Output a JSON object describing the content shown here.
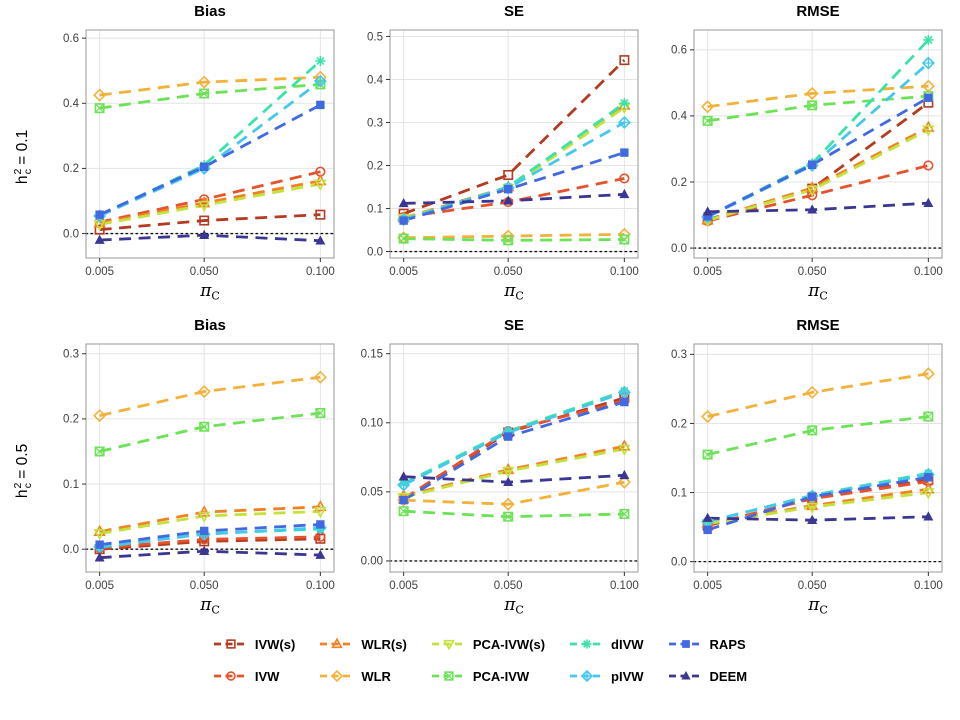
{
  "x_axis": {
    "label": "π",
    "label_subscript": "C",
    "values": [
      0.005,
      0.05,
      0.1
    ],
    "tick_labels": [
      "0.005",
      "0.050",
      "0.100"
    ]
  },
  "rows": [
    {
      "base": "h",
      "sup": "2",
      "sub": "c",
      "rest": "= 0.1"
    },
    {
      "base": "h",
      "sup": "2",
      "sub": "c",
      "rest": "= 0.5"
    }
  ],
  "legend": [
    {
      "label": "IVW(s)",
      "color": "#B43B22",
      "marker": "square-open"
    },
    {
      "label": "IVW",
      "color": "#E6522C",
      "marker": "circle-open"
    },
    {
      "label": "WLR(s)",
      "color": "#F28122",
      "marker": "triangle-up-open"
    },
    {
      "label": "WLR",
      "color": "#F4B13A",
      "marker": "diamond-open"
    },
    {
      "label": "PCA-IVW(s)",
      "color": "#C4E23B",
      "marker": "triangle-down-open"
    },
    {
      "label": "PCA-IVW",
      "color": "#6CE257",
      "marker": "square-x-open"
    },
    {
      "label": "dIVW",
      "color": "#3BE3A8",
      "marker": "asterisk"
    },
    {
      "label": "pIVW",
      "color": "#45C8EE",
      "marker": "diamond-plus-open"
    },
    {
      "label": "RAPS",
      "color": "#4169E1",
      "marker": "square-filled"
    },
    {
      "label": "DEEM",
      "color": "#3B3693",
      "marker": "triangle-filled"
    }
  ],
  "chart_data": [
    {
      "type": "line",
      "title": "Bias",
      "facet_row": "h_c^2 = 0.1",
      "x": [
        0.005,
        0.05,
        0.1
      ],
      "xlabel": "π_C",
      "ylim": [
        -0.075,
        0.625
      ],
      "yticks": [
        0.0,
        0.2,
        0.4,
        0.6
      ],
      "ytick_labels": [
        "0.0",
        "0.2",
        "0.4",
        "0.6"
      ],
      "ref_line_y": 0,
      "series": [
        {
          "name": "IVW(s)",
          "values": [
            0.012,
            0.04,
            0.058
          ]
        },
        {
          "name": "IVW",
          "values": [
            0.035,
            0.105,
            0.19
          ]
        },
        {
          "name": "WLR(s)",
          "values": [
            0.032,
            0.094,
            0.162
          ]
        },
        {
          "name": "WLR",
          "values": [
            0.425,
            0.465,
            0.48
          ]
        },
        {
          "name": "PCA-IVW(s)",
          "values": [
            0.028,
            0.087,
            0.152
          ]
        },
        {
          "name": "PCA-IVW",
          "values": [
            0.385,
            0.43,
            0.458
          ]
        },
        {
          "name": "dIVW",
          "values": [
            0.056,
            0.21,
            0.53
          ]
        },
        {
          "name": "pIVW",
          "values": [
            0.054,
            0.2,
            0.468
          ]
        },
        {
          "name": "RAPS",
          "values": [
            0.058,
            0.205,
            0.395
          ]
        },
        {
          "name": "DEEM",
          "values": [
            -0.02,
            -0.005,
            -0.022
          ]
        }
      ]
    },
    {
      "type": "line",
      "title": "SE",
      "facet_row": "h_c^2 = 0.1",
      "x": [
        0.005,
        0.05,
        0.1
      ],
      "xlabel": "π_C",
      "ylim": [
        -0.015,
        0.515
      ],
      "yticks": [
        0.0,
        0.1,
        0.2,
        0.3,
        0.4,
        0.5
      ],
      "ytick_labels": [
        "0.0",
        "0.1",
        "0.2",
        "0.3",
        "0.4",
        "0.5"
      ],
      "ref_line_y": 0,
      "series": [
        {
          "name": "IVW(s)",
          "values": [
            0.088,
            0.178,
            0.445
          ]
        },
        {
          "name": "IVW",
          "values": [
            0.08,
            0.115,
            0.17
          ]
        },
        {
          "name": "WLR(s)",
          "values": [
            0.078,
            0.15,
            0.34
          ]
        },
        {
          "name": "WLR",
          "values": [
            0.032,
            0.036,
            0.04
          ]
        },
        {
          "name": "PCA-IVW(s)",
          "values": [
            0.077,
            0.147,
            0.335
          ]
        },
        {
          "name": "PCA-IVW",
          "values": [
            0.03,
            0.026,
            0.028
          ]
        },
        {
          "name": "dIVW",
          "values": [
            0.075,
            0.15,
            0.345
          ]
        },
        {
          "name": "pIVW",
          "values": [
            0.074,
            0.148,
            0.3
          ]
        },
        {
          "name": "RAPS",
          "values": [
            0.072,
            0.145,
            0.23
          ]
        },
        {
          "name": "DEEM",
          "values": [
            0.112,
            0.118,
            0.133
          ]
        }
      ]
    },
    {
      "type": "line",
      "title": "RMSE",
      "facet_row": "h_c^2 = 0.1",
      "x": [
        0.005,
        0.05,
        0.1
      ],
      "xlabel": "π_C",
      "ylim": [
        -0.03,
        0.66
      ],
      "yticks": [
        0.0,
        0.2,
        0.4,
        0.6
      ],
      "ytick_labels": [
        "0.0",
        "0.2",
        "0.4",
        "0.6"
      ],
      "ref_line_y": 0,
      "series": [
        {
          "name": "IVW(s)",
          "values": [
            0.086,
            0.18,
            0.44
          ]
        },
        {
          "name": "IVW",
          "values": [
            0.082,
            0.16,
            0.25
          ]
        },
        {
          "name": "WLR(s)",
          "values": [
            0.085,
            0.182,
            0.365
          ]
        },
        {
          "name": "WLR",
          "values": [
            0.428,
            0.468,
            0.49
          ]
        },
        {
          "name": "PCA-IVW(s)",
          "values": [
            0.084,
            0.176,
            0.358
          ]
        },
        {
          "name": "PCA-IVW",
          "values": [
            0.385,
            0.432,
            0.46
          ]
        },
        {
          "name": "dIVW",
          "values": [
            0.096,
            0.256,
            0.63
          ]
        },
        {
          "name": "pIVW",
          "values": [
            0.094,
            0.25,
            0.56
          ]
        },
        {
          "name": "RAPS",
          "values": [
            0.096,
            0.252,
            0.455
          ]
        },
        {
          "name": "DEEM",
          "values": [
            0.11,
            0.116,
            0.136
          ]
        }
      ]
    },
    {
      "type": "line",
      "title": "Bias",
      "facet_row": "h_c^2 = 0.5",
      "x": [
        0.005,
        0.05,
        0.1
      ],
      "xlabel": "π_C",
      "ylim": [
        -0.035,
        0.315
      ],
      "yticks": [
        0.0,
        0.1,
        0.2,
        0.3
      ],
      "ytick_labels": [
        "0.0",
        "0.1",
        "0.2",
        "0.3"
      ],
      "ref_line_y": 0,
      "series": [
        {
          "name": "IVW(s)",
          "values": [
            0.0,
            0.012,
            0.016
          ]
        },
        {
          "name": "IVW",
          "values": [
            0.002,
            0.015,
            0.019
          ]
        },
        {
          "name": "WLR(s)",
          "values": [
            0.027,
            0.057,
            0.065
          ]
        },
        {
          "name": "WLR",
          "values": [
            0.205,
            0.242,
            0.264
          ]
        },
        {
          "name": "PCA-IVW(s)",
          "values": [
            0.024,
            0.051,
            0.058
          ]
        },
        {
          "name": "PCA-IVW",
          "values": [
            0.15,
            0.188,
            0.209
          ]
        },
        {
          "name": "dIVW",
          "values": [
            0.003,
            0.024,
            0.031
          ]
        },
        {
          "name": "pIVW",
          "values": [
            0.004,
            0.023,
            0.033
          ]
        },
        {
          "name": "RAPS",
          "values": [
            0.007,
            0.028,
            0.038
          ]
        },
        {
          "name": "DEEM",
          "values": [
            -0.013,
            -0.003,
            -0.009
          ]
        }
      ]
    },
    {
      "type": "line",
      "title": "SE",
      "facet_row": "h_c^2 = 0.5",
      "x": [
        0.005,
        0.05,
        0.1
      ],
      "xlabel": "π_C",
      "ylim": [
        -0.008,
        0.157
      ],
      "yticks": [
        0.0,
        0.05,
        0.1,
        0.15
      ],
      "ytick_labels": [
        "0.00",
        "0.05",
        "0.10",
        "0.15"
      ],
      "ref_line_y": 0,
      "series": [
        {
          "name": "IVW(s)",
          "values": [
            0.045,
            0.093,
            0.118
          ]
        },
        {
          "name": "IVW",
          "values": [
            0.045,
            0.094,
            0.116
          ]
        },
        {
          "name": "WLR(s)",
          "values": [
            0.047,
            0.066,
            0.083
          ]
        },
        {
          "name": "WLR",
          "values": [
            0.044,
            0.041,
            0.057
          ]
        },
        {
          "name": "PCA-IVW(s)",
          "values": [
            0.046,
            0.065,
            0.081
          ]
        },
        {
          "name": "PCA-IVW",
          "values": [
            0.036,
            0.032,
            0.034
          ]
        },
        {
          "name": "dIVW",
          "values": [
            0.056,
            0.094,
            0.123
          ]
        },
        {
          "name": "pIVW",
          "values": [
            0.055,
            0.093,
            0.122
          ]
        },
        {
          "name": "RAPS",
          "values": [
            0.044,
            0.09,
            0.115
          ]
        },
        {
          "name": "DEEM",
          "values": [
            0.061,
            0.057,
            0.062
          ]
        }
      ]
    },
    {
      "type": "line",
      "title": "RMSE",
      "facet_row": "h_c^2 = 0.5",
      "x": [
        0.005,
        0.05,
        0.1
      ],
      "xlabel": "π_C",
      "ylim": [
        -0.015,
        0.315
      ],
      "yticks": [
        0.0,
        0.1,
        0.2,
        0.3
      ],
      "ytick_labels": [
        "0.0",
        "0.1",
        "0.2",
        "0.3"
      ],
      "ref_line_y": 0,
      "series": [
        {
          "name": "IVW(s)",
          "values": [
            0.052,
            0.092,
            0.118
          ]
        },
        {
          "name": "IVW",
          "values": [
            0.053,
            0.091,
            0.116
          ]
        },
        {
          "name": "WLR(s)",
          "values": [
            0.056,
            0.081,
            0.105
          ]
        },
        {
          "name": "WLR",
          "values": [
            0.21,
            0.245,
            0.272
          ]
        },
        {
          "name": "PCA-IVW(s)",
          "values": [
            0.055,
            0.079,
            0.1
          ]
        },
        {
          "name": "PCA-IVW",
          "values": [
            0.155,
            0.19,
            0.21
          ]
        },
        {
          "name": "dIVW",
          "values": [
            0.058,
            0.096,
            0.128
          ]
        },
        {
          "name": "pIVW",
          "values": [
            0.058,
            0.095,
            0.126
          ]
        },
        {
          "name": "RAPS",
          "values": [
            0.046,
            0.094,
            0.122
          ]
        },
        {
          "name": "DEEM",
          "values": [
            0.063,
            0.06,
            0.065
          ]
        }
      ]
    }
  ]
}
